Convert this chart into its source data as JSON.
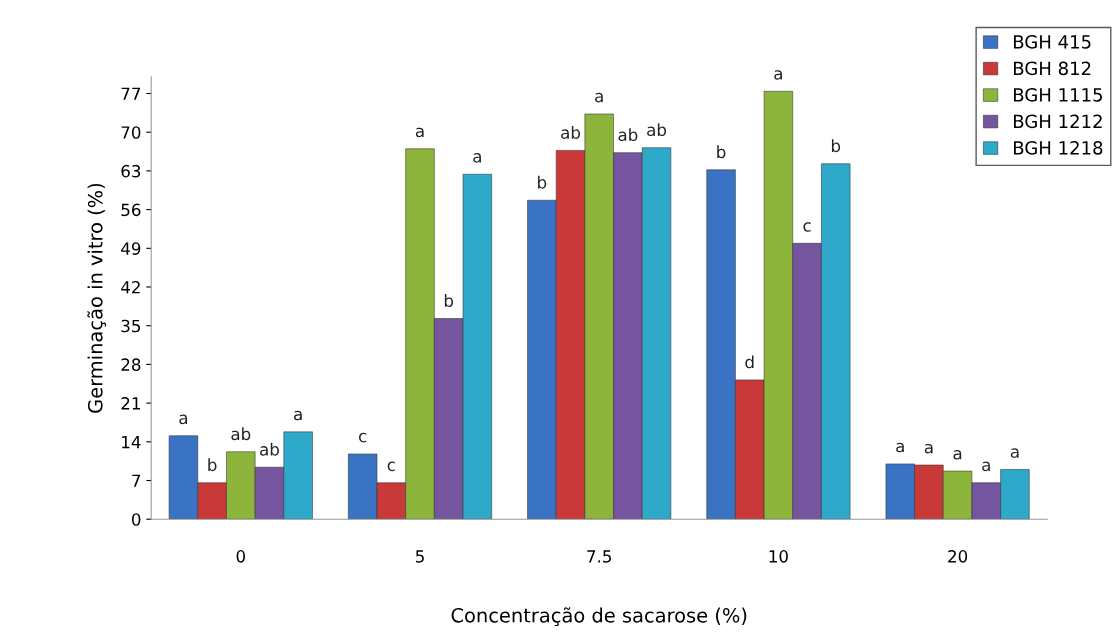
{
  "chart_data": {
    "type": "bar",
    "xlabel": "Concentração de sacarose (%)",
    "ylabel": "Germinação in vitro (%)",
    "categories": [
      "0",
      "5",
      "7.5",
      "10",
      "20"
    ],
    "series": [
      {
        "name": "BGH 415",
        "color": "#3a73c4",
        "values": [
          15.1,
          11.8,
          57.7,
          63.2,
          10.0
        ],
        "value_labels": [
          "a",
          "c",
          "b",
          "b",
          "a"
        ]
      },
      {
        "name": "BGH 812",
        "color": "#c9393a",
        "values": [
          6.6,
          6.6,
          66.7,
          25.2,
          9.8
        ],
        "value_labels": [
          "b",
          "c",
          "ab",
          "d",
          "a"
        ]
      },
      {
        "name": "BGH 1115",
        "color": "#8db53c",
        "values": [
          12.2,
          67.0,
          73.3,
          77.4,
          8.7
        ],
        "value_labels": [
          "ab",
          "a",
          "a",
          "a",
          "a"
        ]
      },
      {
        "name": "BGH 1212",
        "color": "#7554a0",
        "values": [
          9.4,
          36.3,
          66.3,
          49.9,
          6.6
        ],
        "value_labels": [
          "ab",
          "b",
          "ab",
          "c",
          "a"
        ]
      },
      {
        "name": "BGH 1218",
        "color": "#2fa9c9",
        "values": [
          15.8,
          62.4,
          67.2,
          64.3,
          9.0
        ],
        "value_labels": [
          "a",
          "a",
          "ab",
          "b",
          "a"
        ]
      }
    ],
    "ylim": [
      0,
      80
    ],
    "yticks": [
      0,
      7,
      14,
      21,
      28,
      35,
      42,
      49,
      56,
      63,
      70,
      77
    ],
    "grid": false,
    "legend": "top right"
  }
}
